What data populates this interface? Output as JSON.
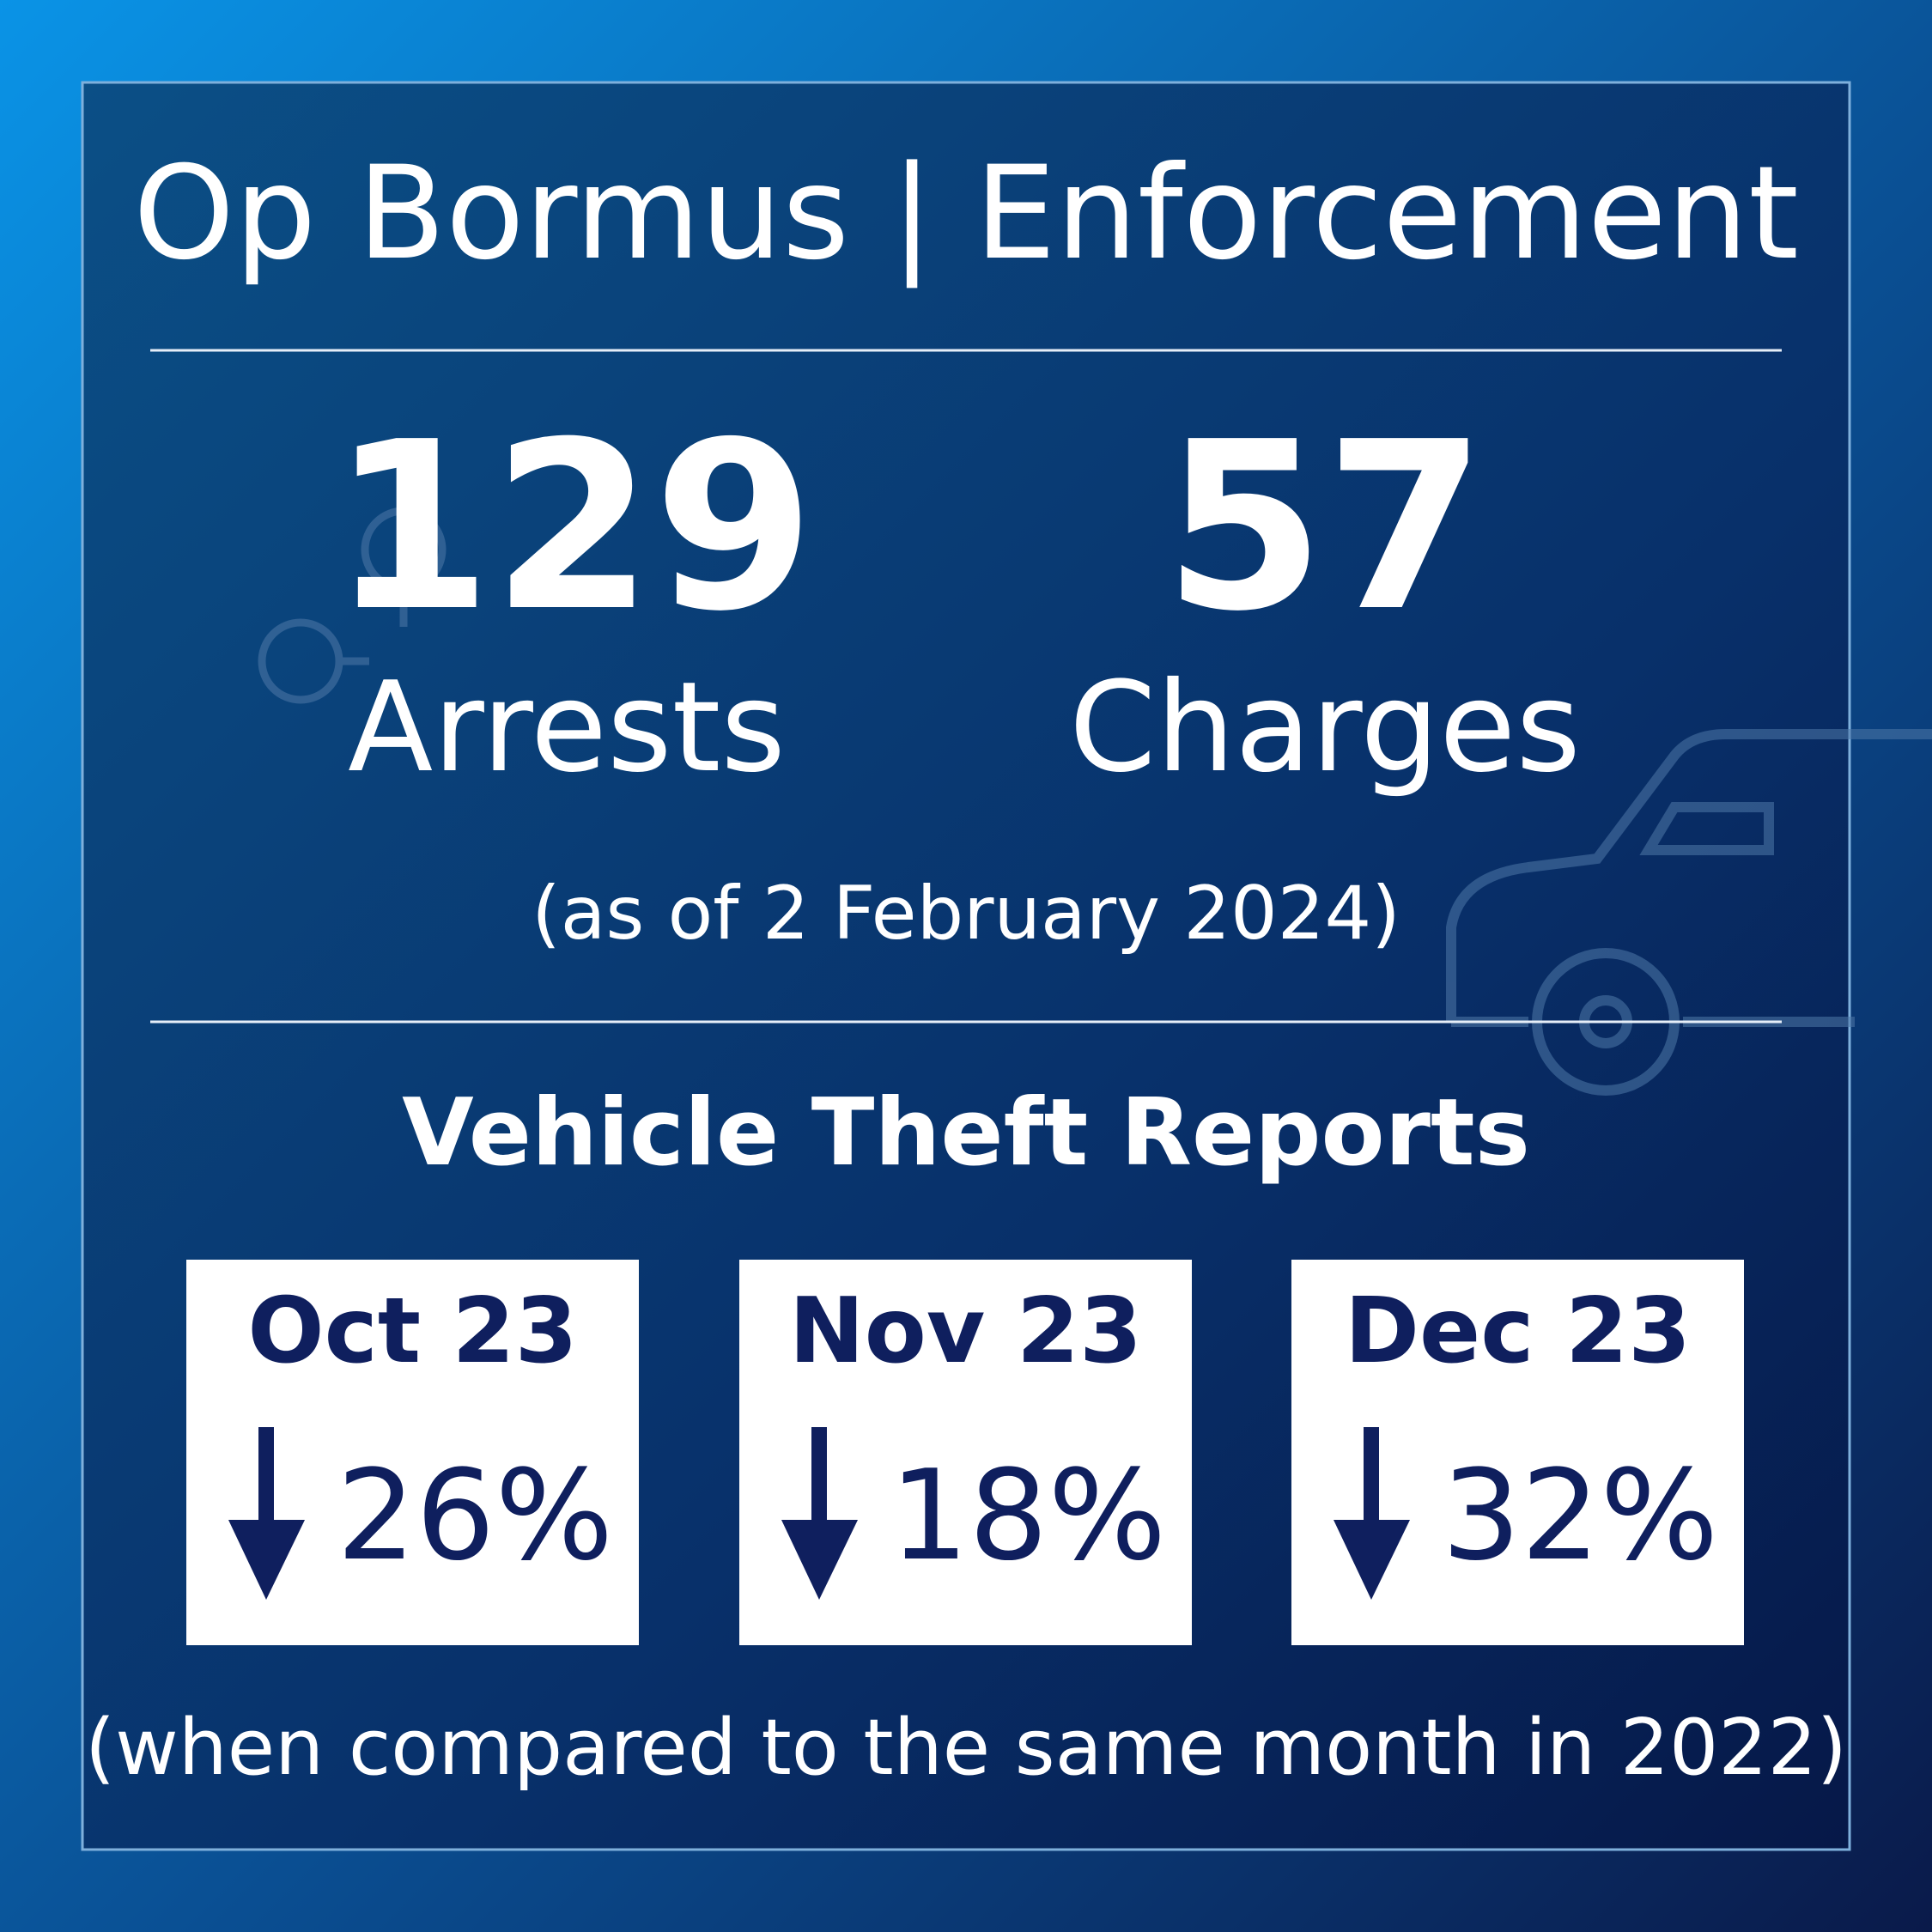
{
  "header": {
    "title": "Op Bormus | Enforcement"
  },
  "stats": [
    {
      "value": "129",
      "label": "Arrests"
    },
    {
      "value": "57",
      "label": "Charges"
    }
  ],
  "stats_note": "(as of 2 February 2024)",
  "section": {
    "title": "Vehicle Theft Reports",
    "cards": [
      {
        "month": "Oct 23",
        "change": "26%"
      },
      {
        "month": "Nov 23",
        "change": "18%"
      },
      {
        "month": "Dec 23",
        "change": "32%"
      }
    ],
    "note": "(when compared to the same month in 2022)"
  }
}
